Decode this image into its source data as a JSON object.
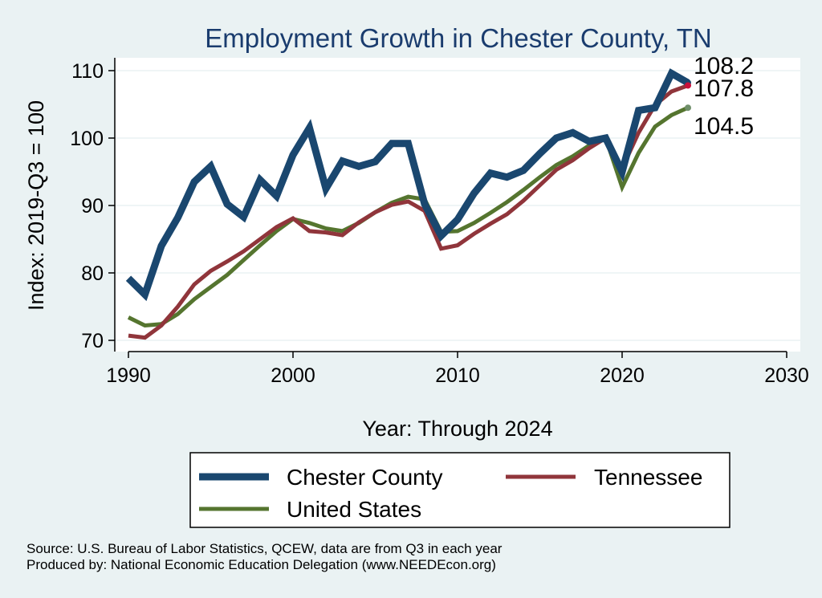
{
  "chart_data": {
    "type": "line",
    "title": "Employment Growth in Chester County, TN",
    "xlabel": "Year: Through 2024",
    "ylabel": "Index: 2019-Q3 = 100",
    "xlim": [
      1990,
      2030
    ],
    "ylim": [
      69,
      112
    ],
    "xticks": [
      1990,
      2000,
      2010,
      2020,
      2030
    ],
    "yticks": [
      70,
      80,
      90,
      100,
      110
    ],
    "grid": true,
    "x": [
      1990,
      1991,
      1992,
      1993,
      1994,
      1995,
      1996,
      1997,
      1998,
      1999,
      2000,
      2001,
      2002,
      2003,
      2004,
      2005,
      2006,
      2007,
      2008,
      2009,
      2010,
      2011,
      2012,
      2013,
      2014,
      2015,
      2016,
      2017,
      2018,
      2019,
      2020,
      2021,
      2022,
      2023,
      2024
    ],
    "series": [
      {
        "name": "Chester  County",
        "color": "#1a476f",
        "end_label": "108.2",
        "values": [
          79.2,
          76.8,
          84.0,
          88.2,
          93.5,
          95.8,
          90.2,
          88.3,
          93.8,
          91.4,
          97.5,
          101.5,
          92.5,
          96.6,
          95.8,
          96.5,
          99.2,
          99.2,
          90.2,
          85.5,
          87.9,
          91.8,
          94.8,
          94.2,
          95.2,
          97.7,
          100.0,
          100.8,
          99.5,
          100.0,
          95.0,
          104.1,
          104.5,
          109.6,
          108.2
        ]
      },
      {
        "name": "Tennessee",
        "color": "#90353b",
        "end_label": "107.8",
        "values": [
          70.7,
          70.4,
          72.2,
          75.0,
          78.3,
          80.3,
          81.7,
          83.2,
          85.0,
          86.8,
          88.1,
          86.2,
          86.0,
          85.6,
          87.5,
          89.0,
          90.1,
          90.6,
          89.2,
          83.6,
          84.1,
          85.8,
          87.3,
          88.7,
          90.7,
          93.0,
          95.3,
          96.7,
          98.5,
          100.0,
          95.5,
          100.8,
          104.9,
          106.9,
          107.8
        ]
      },
      {
        "name": "United States",
        "color": "#55752f",
        "end_label": "104.5",
        "values": [
          73.4,
          72.2,
          72.4,
          73.9,
          76.1,
          77.9,
          79.7,
          81.9,
          84.1,
          86.2,
          88.0,
          87.4,
          86.6,
          86.2,
          87.4,
          89.0,
          90.4,
          91.3,
          90.9,
          86.1,
          86.2,
          87.4,
          88.9,
          90.5,
          92.3,
          94.2,
          96.0,
          97.3,
          98.9,
          100.0,
          92.7,
          97.8,
          101.7,
          103.4,
          104.5
        ]
      }
    ],
    "legend_position": "bottom",
    "source_lines": [
      "Source: U.S. Bureau of Labor Statistics, QCEW, data are from Q3 in each year",
      "Produced by: National Economic Education Delegation (www.NEEDEcon.org)"
    ]
  }
}
